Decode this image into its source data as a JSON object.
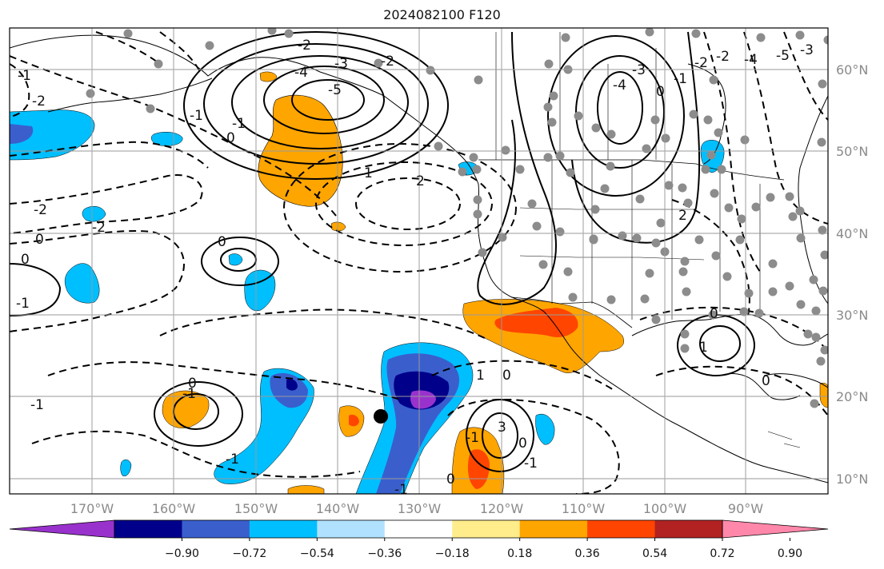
{
  "title": "2024082100 F120",
  "map": {
    "lon_labels": [
      "170°W",
      "160°W",
      "150°W",
      "140°W",
      "130°W",
      "120°W",
      "110°W",
      "100°W",
      "90°W"
    ],
    "lat_labels": [
      "60°N",
      "50°N",
      "40°N",
      "30°N",
      "20°N",
      "10°N"
    ],
    "contour_labels": [
      "-2",
      "-3",
      "-2",
      "-4",
      "-5",
      "-1",
      "0",
      "1",
      "2",
      "-1",
      "-4",
      "-3",
      "-2",
      "-1",
      "0",
      "-2",
      "-3",
      "-4",
      "-5",
      "-2",
      "0",
      "0",
      "-2",
      "-1",
      "-2",
      "-1",
      "0",
      "-1",
      "-1",
      "0",
      "-1",
      "0",
      "-1",
      "3",
      "-1",
      "0",
      "1",
      "0",
      "1",
      "2",
      "0",
      "0",
      "-1"
    ],
    "colors": {
      "land_outline": "#000000",
      "grid": "#9a9a9a",
      "contour": "#000000",
      "station_dot": "#8c8c8c"
    }
  },
  "colorbar": {
    "tick_labels": [
      "−0.90",
      "−0.72",
      "−0.54",
      "−0.36",
      "−0.18",
      "0.18",
      "0.36",
      "0.54",
      "0.72",
      "0.90"
    ],
    "colors": [
      "#9932cc",
      "#00008b",
      "#3a5fcd",
      "#00bfff",
      "#b0e2ff",
      "#ffffff",
      "#ffec8b",
      "#ffa500",
      "#ff4500",
      "#b22222",
      "#ff88aa"
    ]
  }
}
